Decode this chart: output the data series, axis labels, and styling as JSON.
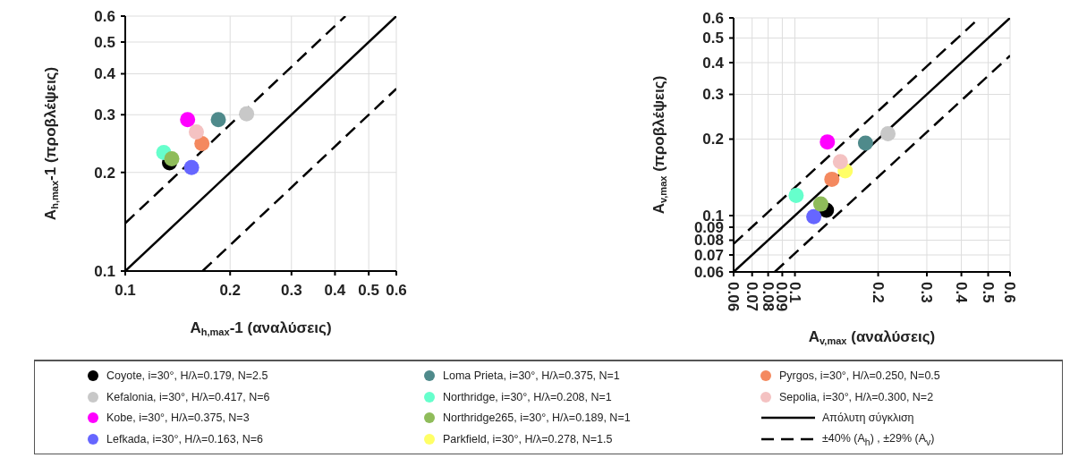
{
  "chart_data": [
    {
      "type": "scatter",
      "xlabel": "A$_{h,max}$-1 (αναλύσεις)",
      "ylabel": "A$_{h,max}$-1 (προβλέψεις)",
      "log": "xy",
      "grid": true,
      "xlim": [
        0.1,
        0.6
      ],
      "ylim": [
        0.1,
        0.6
      ],
      "xticks": [
        0.1,
        0.2,
        0.3,
        0.4,
        0.5,
        0.6
      ],
      "yticks": [
        0.1,
        0.2,
        0.3,
        0.4,
        0.5,
        0.6
      ],
      "series": [
        {
          "color": "#000000",
          "marker": "circle",
          "x": [
            0.134
          ],
          "values": [
            0.214
          ]
        },
        {
          "color": "#c8c8c8",
          "marker": "circle",
          "x": [
            0.223
          ],
          "values": [
            0.302
          ]
        },
        {
          "color": "#ff00ff",
          "marker": "circle",
          "x": [
            0.151
          ],
          "values": [
            0.29
          ]
        },
        {
          "color": "#6666ff",
          "marker": "circle",
          "x": [
            0.155
          ],
          "values": [
            0.207
          ]
        },
        {
          "color": "#4f8a8b",
          "marker": "circle",
          "x": [
            0.185
          ],
          "values": [
            0.29
          ]
        },
        {
          "color": "#66ffcc",
          "marker": "circle",
          "x": [
            0.129
          ],
          "values": [
            0.23
          ]
        },
        {
          "color": "#8fbc5a",
          "marker": "circle",
          "x": [
            0.136
          ],
          "values": [
            0.22
          ]
        },
        {
          "color": "#f4895f",
          "marker": "circle",
          "x": [
            0.166
          ],
          "values": [
            0.245
          ]
        },
        {
          "color": "#f4c2c2",
          "marker": "circle",
          "x": [
            0.16
          ],
          "values": [
            0.266
          ]
        },
        {
          "type": "line",
          "line_style": "solid",
          "marker": "none",
          "color": "#000000",
          "x": [
            0.1,
            0.6
          ],
          "values": [
            0.1,
            0.6
          ]
        },
        {
          "type": "line",
          "line_style": "dashed",
          "marker": "none",
          "color": "#000000",
          "x": [
            0.1,
            0.4286
          ],
          "values": [
            0.14,
            0.6
          ]
        },
        {
          "type": "line",
          "line_style": "dashed",
          "marker": "none",
          "color": "#000000",
          "x": [
            0.1667,
            0.6
          ],
          "values": [
            0.1,
            0.36
          ]
        }
      ]
    },
    {
      "type": "scatter",
      "xlabel": "A$_{v,max}$ (αναλύσεις)",
      "ylabel": "A$_{v,max}$ (προβλέψεις)",
      "log": "xy",
      "grid": true,
      "legend": "bottom",
      "xlim": [
        0.06,
        0.6
      ],
      "ylim": [
        0.06,
        0.6
      ],
      "xticks": [
        0.06,
        0.07,
        0.08,
        0.09,
        0.1,
        0.2,
        0.3,
        0.4,
        0.5,
        0.6
      ],
      "yticks": [
        0.06,
        0.07,
        0.08,
        0.09,
        0.1,
        0.2,
        0.3,
        0.4,
        0.5,
        0.6
      ],
      "series": [
        {
          "name": "Coyote, i=30°, H/λ=0.179, N=2.5",
          "color": "#000000",
          "marker": "circle",
          "x": [
            0.13
          ],
          "values": [
            0.105
          ]
        },
        {
          "name": "Kefalonia, i=30°, H/λ=0.417, N=6",
          "color": "#c8c8c8",
          "marker": "circle",
          "x": [
            0.217
          ],
          "values": [
            0.21
          ]
        },
        {
          "name": "Kobe, i=30°, H/λ=0.375, N=3",
          "color": "#ff00ff",
          "marker": "circle",
          "x": [
            0.131
          ],
          "values": [
            0.195
          ]
        },
        {
          "name": "Lefkada, i=30°, H/λ=0.163, N=6",
          "color": "#6666ff",
          "marker": "circle",
          "x": [
            0.117
          ],
          "values": [
            0.099
          ]
        },
        {
          "name": "Loma Prieta, i=30°, H/λ=0.375, N=1",
          "color": "#4f8a8b",
          "marker": "circle",
          "x": [
            0.18
          ],
          "values": [
            0.193
          ]
        },
        {
          "name": "Northridge, i=30°, H/λ=0.208, N=1",
          "color": "#66ffcc",
          "marker": "circle",
          "x": [
            0.101
          ],
          "values": [
            0.12
          ]
        },
        {
          "name": "Northridge265, i=30°, H/λ=0.189, N=1",
          "color": "#8fbc5a",
          "marker": "circle",
          "x": [
            0.124
          ],
          "values": [
            0.111
          ]
        },
        {
          "name": "Parkfield, i=30°, H/λ=0.278, N=1.5",
          "color": "#ffff66",
          "marker": "circle",
          "x": [
            0.152
          ],
          "values": [
            0.15
          ]
        },
        {
          "name": "Pyrgos, i=30°, H/λ=0.250, N=0.5",
          "color": "#f4895f",
          "marker": "circle",
          "x": [
            0.136
          ],
          "values": [
            0.139
          ]
        },
        {
          "name": "Sepolia, i=30°, H/λ=0.300, N=2",
          "color": "#f4c2c2",
          "marker": "circle",
          "x": [
            0.146
          ],
          "values": [
            0.163
          ]
        },
        {
          "name": "Απόλυτη σύγκλιση",
          "type": "line",
          "line_style": "solid",
          "marker": "none",
          "color": "#000000",
          "x": [
            0.06,
            0.6
          ],
          "values": [
            0.06,
            0.6
          ]
        },
        {
          "name": "±40% (A$_{h}$) , ±29% (A$_{v}$)",
          "type": "line",
          "line_style": "dashed",
          "marker": "none",
          "color": "#000000",
          "x": [
            0.06,
            0.4651
          ],
          "values": [
            0.0774,
            0.6
          ]
        },
        {
          "type": "line",
          "line_style": "dashed",
          "marker": "none",
          "color": "#000000",
          "x": [
            0.0845,
            0.6
          ],
          "values": [
            0.06,
            0.426
          ]
        }
      ]
    }
  ]
}
